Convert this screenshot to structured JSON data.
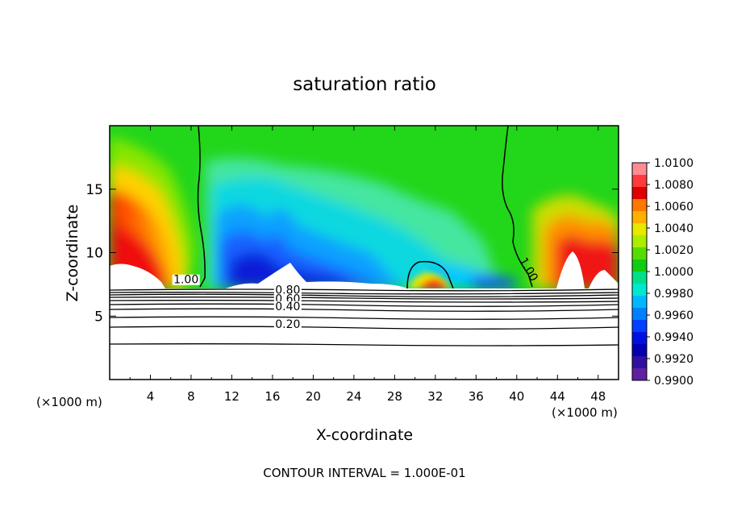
{
  "chart_data": {
    "type": "heatmap",
    "title": "saturation ratio",
    "xlabel": "X-coordinate",
    "ylabel": "Z-coordinate",
    "x_unit_left": "(×1000 m)",
    "x_unit_right": "(×1000 m)",
    "xlim": [
      0,
      50
    ],
    "ylim": [
      0,
      20
    ],
    "x_ticks": [
      4,
      8,
      12,
      16,
      20,
      24,
      28,
      32,
      36,
      40,
      44,
      48
    ],
    "y_ticks": [
      5,
      10,
      15
    ],
    "footer": "CONTOUR INTERVAL = 1.000E-01",
    "colorbar": {
      "labels": [
        "1.0100",
        "1.0080",
        "1.0060",
        "1.0040",
        "1.0020",
        "1.0000",
        "0.9980",
        "0.9960",
        "0.9940",
        "0.9920",
        "0.9900"
      ],
      "colors": [
        "#ff8c94",
        "#ff3a3a",
        "#e00000",
        "#ff7700",
        "#ffb000",
        "#e8e800",
        "#aaee00",
        "#55dd00",
        "#11cc11",
        "#00e088",
        "#00e8d0",
        "#00b8ff",
        "#0080ff",
        "#0040ff",
        "#0010e0",
        "#0000b0",
        "#3010a0",
        "#6020a0"
      ]
    },
    "contour_labels": [
      {
        "text": "1.00",
        "x": 7.5,
        "z": 7.7
      },
      {
        "text": "1.00",
        "x": 41.0,
        "z": 8.6
      },
      {
        "text": "0.80",
        "x": 17.5,
        "z": 6.9
      },
      {
        "text": "0.60",
        "x": 17.5,
        "z": 6.2
      },
      {
        "text": "0.40",
        "x": 17.5,
        "z": 5.6
      },
      {
        "text": "0.20",
        "x": 17.5,
        "z": 4.2
      }
    ]
  }
}
